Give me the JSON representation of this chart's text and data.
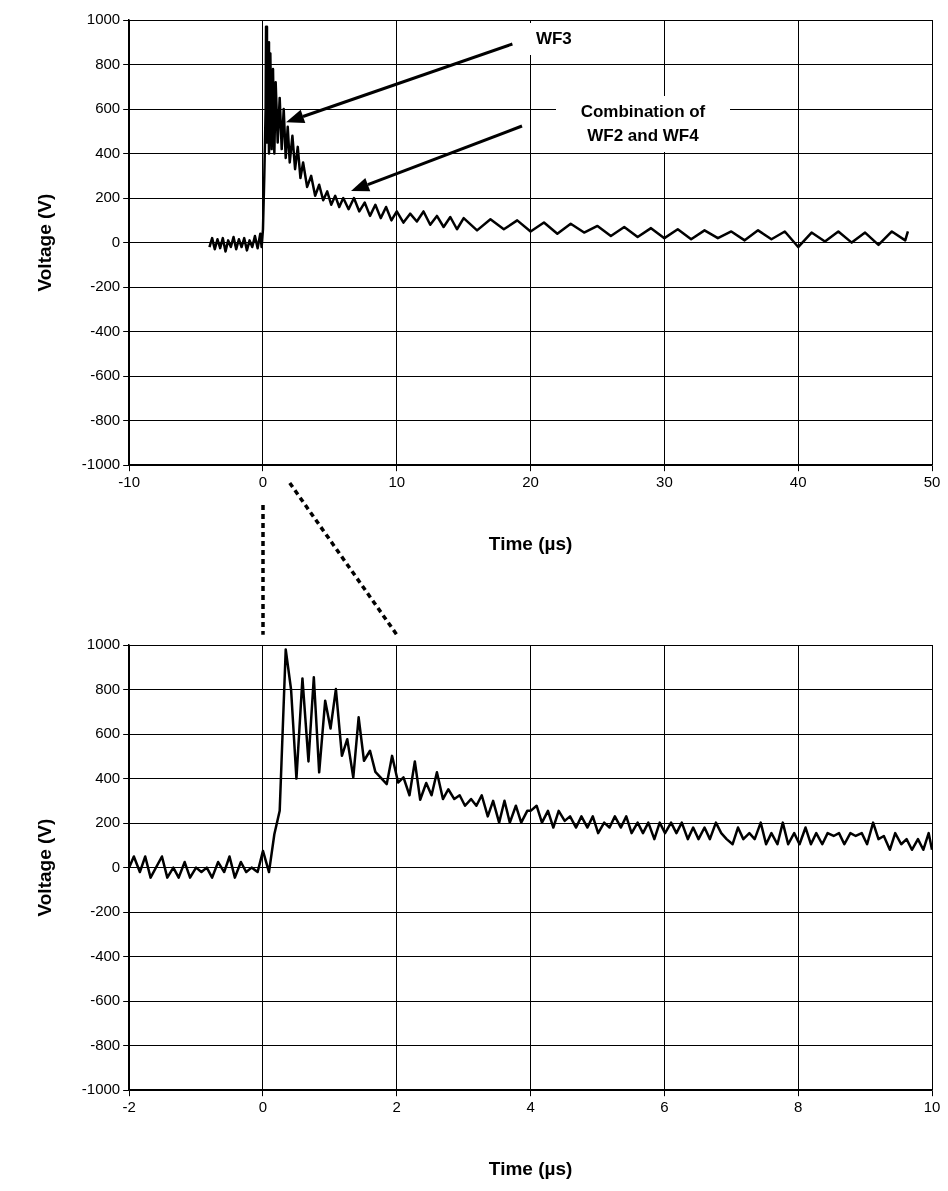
{
  "chart_data": [
    {
      "type": "line",
      "xlabel": "Time (µs)",
      "ylabel": "Voltage (V)",
      "xlim": [
        -10,
        50
      ],
      "xticks": [
        -10,
        0,
        10,
        20,
        30,
        40,
        50
      ],
      "ylim": [
        -1000,
        1000
      ],
      "yticks": [
        -1000,
        -800,
        -600,
        -400,
        -200,
        0,
        200,
        400,
        600,
        800,
        1000
      ],
      "grid": true,
      "legend": false,
      "marker": "none",
      "line_style": "solid",
      "annotations": [
        "WF3",
        "Combination of WF2 and WF4"
      ],
      "x": [
        -4.0,
        -3.8,
        -3.6,
        -3.4,
        -3.2,
        -3.0,
        -2.8,
        -2.6,
        -2.4,
        -2.2,
        -2.0,
        -1.8,
        -1.6,
        -1.4,
        -1.2,
        -1.0,
        -0.8,
        -0.6,
        -0.4,
        -0.2,
        -0.1,
        0.0,
        0.1,
        0.2,
        0.23,
        0.3,
        0.38,
        0.45,
        0.55,
        0.65,
        0.75,
        0.85,
        0.95,
        1.1,
        1.25,
        1.4,
        1.55,
        1.7,
        1.85,
        2.0,
        2.2,
        2.4,
        2.6,
        2.8,
        3.0,
        3.3,
        3.6,
        3.9,
        4.2,
        4.5,
        4.8,
        5.1,
        5.4,
        5.7,
        6.0,
        6.4,
        6.8,
        7.2,
        7.6,
        8.0,
        8.4,
        8.8,
        9.2,
        9.6,
        10.0,
        10.5,
        11,
        11.5,
        12,
        12.5,
        13,
        13.5,
        14,
        14.5,
        15,
        16,
        17,
        18,
        19,
        20,
        21,
        22,
        23,
        24,
        25,
        26,
        27,
        28,
        29,
        30,
        31,
        32,
        33,
        34,
        35,
        36,
        37,
        38,
        39,
        40,
        41,
        42,
        43,
        44,
        45,
        46,
        47,
        48,
        48.2
      ],
      "series": [
        {
          "color": "#000000",
          "values": [
            -20,
            20,
            -30,
            15,
            -25,
            20,
            -40,
            10,
            -20,
            25,
            -30,
            15,
            -20,
            20,
            -35,
            10,
            -20,
            30,
            -25,
            40,
            -20,
            60,
            300,
            600,
            970,
            450,
            900,
            400,
            850,
            420,
            780,
            400,
            720,
            450,
            650,
            420,
            600,
            380,
            520,
            360,
            480,
            330,
            430,
            290,
            360,
            250,
            300,
            210,
            260,
            190,
            230,
            170,
            210,
            160,
            200,
            150,
            200,
            140,
            180,
            120,
            170,
            110,
            160,
            100,
            140,
            90,
            130,
            95,
            140,
            80,
            120,
            70,
            115,
            60,
            110,
            55,
            105,
            60,
            100,
            50,
            90,
            40,
            85,
            45,
            75,
            30,
            70,
            25,
            65,
            20,
            60,
            15,
            55,
            20,
            50,
            10,
            55,
            15,
            50,
            -20,
            45,
            5,
            50,
            0,
            45,
            -10,
            50,
            10,
            50
          ]
        }
      ]
    },
    {
      "type": "line",
      "xlabel": "Time (µs)",
      "ylabel": "Voltage (V)",
      "xlim": [
        -2,
        10
      ],
      "xticks": [
        -2,
        0,
        2,
        4,
        6,
        8,
        10
      ],
      "ylim": [
        -1000,
        1000
      ],
      "yticks": [
        -1000,
        -800,
        -600,
        -400,
        -200,
        0,
        200,
        400,
        600,
        800,
        1000
      ],
      "grid": true,
      "legend": false,
      "marker": "none",
      "line_style": "solid",
      "x": [
        -2.0,
        -1.93,
        -1.84,
        -1.76,
        -1.68,
        -1.51,
        -1.43,
        -1.34,
        -1.26,
        -1.17,
        -1.09,
        -1.0,
        -0.92,
        -0.84,
        -0.76,
        -0.67,
        -0.58,
        -0.5,
        -0.42,
        -0.33,
        -0.25,
        -0.17,
        -0.08,
        0.0,
        0.09,
        0.17,
        0.25,
        0.34,
        0.42,
        0.5,
        0.59,
        0.68,
        0.76,
        0.84,
        0.93,
        1.01,
        1.09,
        1.18,
        1.26,
        1.35,
        1.43,
        1.51,
        1.6,
        1.68,
        1.85,
        1.93,
        2.02,
        2.1,
        2.19,
        2.27,
        2.35,
        2.44,
        2.52,
        2.6,
        2.69,
        2.77,
        2.86,
        2.94,
        3.02,
        3.11,
        3.19,
        3.27,
        3.36,
        3.44,
        3.53,
        3.61,
        3.69,
        3.78,
        3.86,
        3.95,
        4.0,
        4.09,
        4.17,
        4.26,
        4.34,
        4.42,
        4.51,
        4.59,
        4.68,
        4.76,
        4.85,
        4.93,
        5.01,
        5.1,
        5.18,
        5.26,
        5.35,
        5.43,
        5.51,
        5.6,
        5.68,
        5.76,
        5.85,
        5.93,
        6.01,
        6.1,
        6.18,
        6.26,
        6.35,
        6.43,
        6.51,
        6.6,
        6.68,
        6.77,
        6.85,
        6.93,
        7.02,
        7.1,
        7.18,
        7.27,
        7.35,
        7.44,
        7.52,
        7.6,
        7.69,
        7.77,
        7.85,
        7.94,
        8.02,
        8.11,
        8.19,
        8.27,
        8.36,
        8.44,
        8.53,
        8.61,
        8.69,
        8.78,
        8.86,
        8.95,
        9.03,
        9.12,
        9.2,
        9.28,
        9.37,
        9.45,
        9.54,
        9.62,
        9.7,
        9.79,
        9.87,
        9.95,
        10.0
      ],
      "series": [
        {
          "color": "#000000",
          "values": [
            0,
            50,
            -20,
            50,
            -45,
            50,
            -45,
            0,
            -45,
            25,
            -45,
            0,
            -20,
            0,
            -45,
            25,
            -20,
            50,
            -45,
            25,
            -20,
            0,
            -20,
            75,
            -20,
            150,
            255,
            980,
            800,
            400,
            850,
            477,
            855,
            428,
            750,
            625,
            802,
            502,
            577,
            405,
            675,
            480,
            525,
            430,
            375,
            502,
            382,
            405,
            325,
            477,
            305,
            380,
            325,
            428,
            308,
            352,
            308,
            325,
            278,
            308,
            278,
            325,
            230,
            300,
            202,
            300,
            202,
            278,
            202,
            255,
            255,
            278,
            202,
            255,
            180,
            255,
            210,
            230,
            180,
            230,
            180,
            230,
            155,
            202,
            180,
            230,
            180,
            230,
            155,
            202,
            155,
            202,
            128,
            202,
            155,
            202,
            155,
            202,
            128,
            180,
            128,
            180,
            128,
            202,
            155,
            128,
            105,
            180,
            128,
            155,
            128,
            202,
            105,
            155,
            105,
            202,
            105,
            155,
            105,
            180,
            105,
            155,
            105,
            155,
            142,
            155,
            105,
            155,
            142,
            155,
            105,
            202,
            128,
            142,
            80,
            155,
            105,
            128,
            80,
            128,
            80,
            155,
            80
          ]
        }
      ]
    }
  ]
}
